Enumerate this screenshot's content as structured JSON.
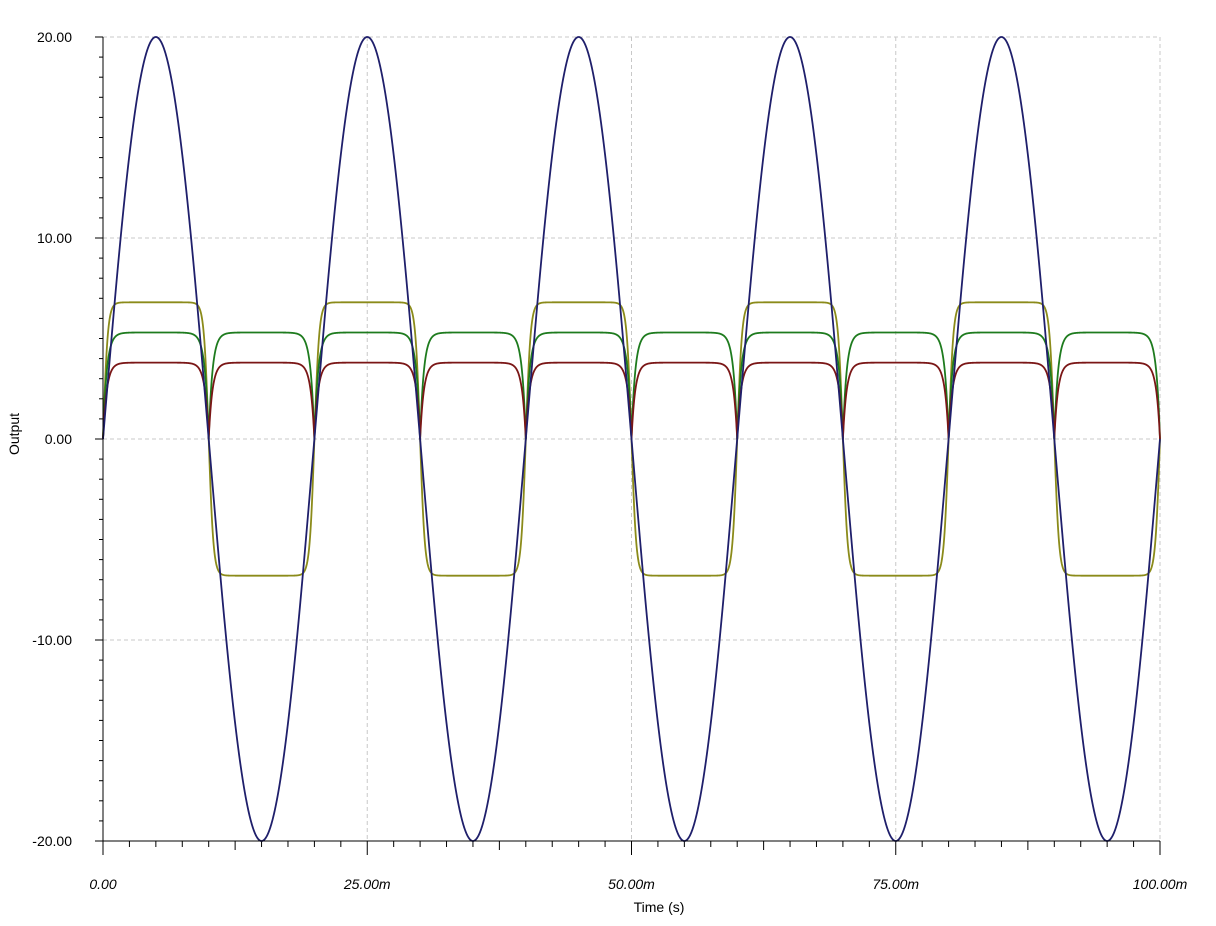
{
  "chart_data": {
    "type": "line",
    "title": "",
    "xlabel": "Time (s)",
    "ylabel": "Output",
    "xlim": [
      0,
      0.1
    ],
    "ylim": [
      -20,
      20
    ],
    "grid": true,
    "x_ticks": [
      {
        "value": 0,
        "label": "0.00"
      },
      {
        "value": 0.025,
        "label": "25.00m"
      },
      {
        "value": 0.05,
        "label": "50.00m"
      },
      {
        "value": 0.075,
        "label": "75.00m"
      },
      {
        "value": 0.1,
        "label": "100.00m"
      }
    ],
    "y_ticks": [
      {
        "value": 20,
        "label": "20.00"
      },
      {
        "value": 10,
        "label": "10.00"
      },
      {
        "value": 0,
        "label": "0.00"
      },
      {
        "value": -10,
        "label": "-10.00"
      },
      {
        "value": -20,
        "label": "-20.00"
      }
    ],
    "series": [
      {
        "kind": "sine",
        "color": "#1f1f6b",
        "amplitude": 20,
        "frequency_hz": 50
      },
      {
        "kind": "clipped_sine",
        "color": "#8b8b1a",
        "level": 6.8,
        "frequency_hz": 50
      },
      {
        "kind": "rectified",
        "color": "#1e7b1e",
        "level": 5.3,
        "frequency_hz": 50
      },
      {
        "kind": "rectified",
        "color": "#7a1616",
        "level": 3.8,
        "frequency_hz": 50
      }
    ]
  }
}
